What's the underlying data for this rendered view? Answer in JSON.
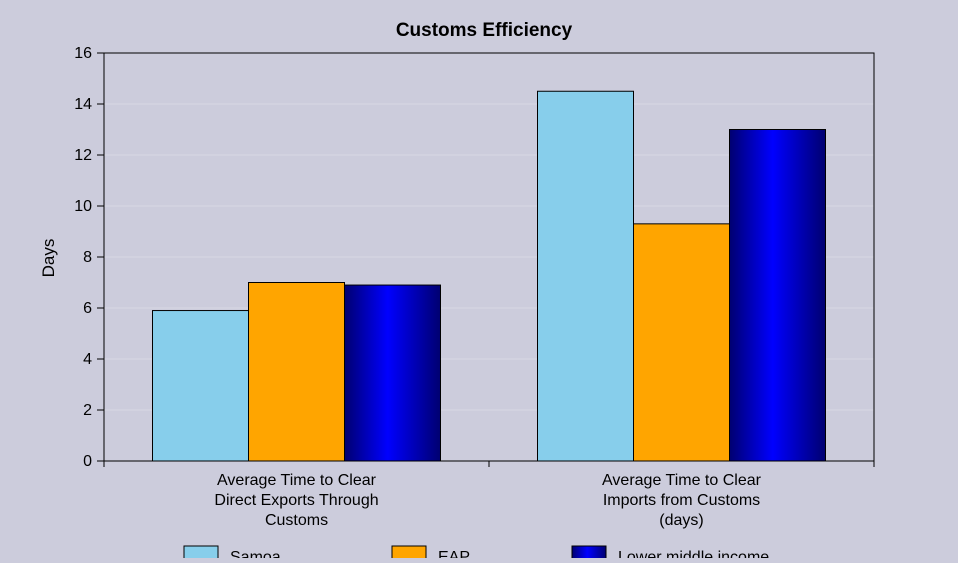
{
  "chart_data": {
    "type": "bar",
    "title": "Customs Efficiency",
    "xlabel": "",
    "ylabel": "Days",
    "ylim": [
      0,
      16
    ],
    "yticks": [
      0,
      2,
      4,
      6,
      8,
      10,
      12,
      14,
      16
    ],
    "grid": true,
    "legend_position": "bottom",
    "categories": [
      [
        "Average Time to Clear",
        "Direct Exports Through",
        "Customs"
      ],
      [
        "Average Time to Clear",
        "Imports from Customs",
        "(days)"
      ]
    ],
    "series": [
      {
        "name": "Samoa",
        "values": [
          5.9,
          14.5
        ],
        "color": "#87ceeb"
      },
      {
        "name": "EAP",
        "values": [
          7.0,
          9.3
        ],
        "color": "#ffa500"
      },
      {
        "name": "Lower middle income",
        "values": [
          6.9,
          13.0
        ],
        "color": "#0000dd"
      }
    ]
  }
}
